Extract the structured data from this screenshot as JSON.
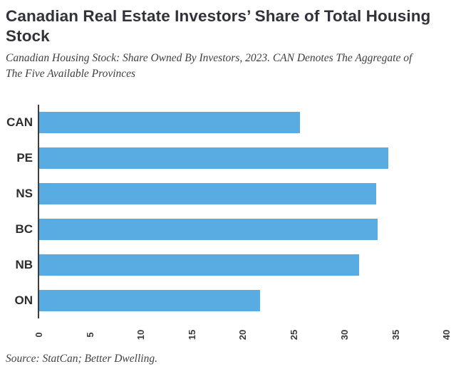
{
  "header": {
    "title": "Canadian Real Estate Investors’ Share of Total Housing Stock",
    "subtitle": "Canadian Housing Stock: Share Owned By Investors, 2023. CAN Denotes The Aggregate of The Five Available Provinces"
  },
  "chart_data": {
    "type": "bar",
    "orientation": "horizontal",
    "title": "Canadian Real Estate Investors’ Share of Total Housing Stock",
    "subtitle": "Canadian Housing Stock: Share Owned By Investors, 2023. CAN Denotes The Aggregate of The Five Available Provinces",
    "categories": [
      "CAN",
      "PE",
      "NS",
      "BC",
      "NB",
      "ON"
    ],
    "values": [
      25.6,
      34.3,
      33.1,
      33.2,
      31.4,
      21.7
    ],
    "unit": "percent share of housing stock",
    "xlabel": "",
    "ylabel": "",
    "xlim": [
      0,
      40
    ],
    "xticks": [
      0,
      5,
      10,
      15,
      20,
      25,
      30,
      35,
      40
    ],
    "xtick_rotation": 90,
    "grid": false,
    "legend": false,
    "bar_color": "#58ace2"
  },
  "source": {
    "text": "Source: StatCan; Better Dwelling."
  },
  "colors": {
    "background": "#ffffff",
    "bar": "#58ace2",
    "axis_line": "#3e3e3e",
    "title_text": "#32333a",
    "label_text": "#2d2d2e",
    "tick_text": "#3a3a3a",
    "subtitle_text": "#3d3d3d"
  }
}
